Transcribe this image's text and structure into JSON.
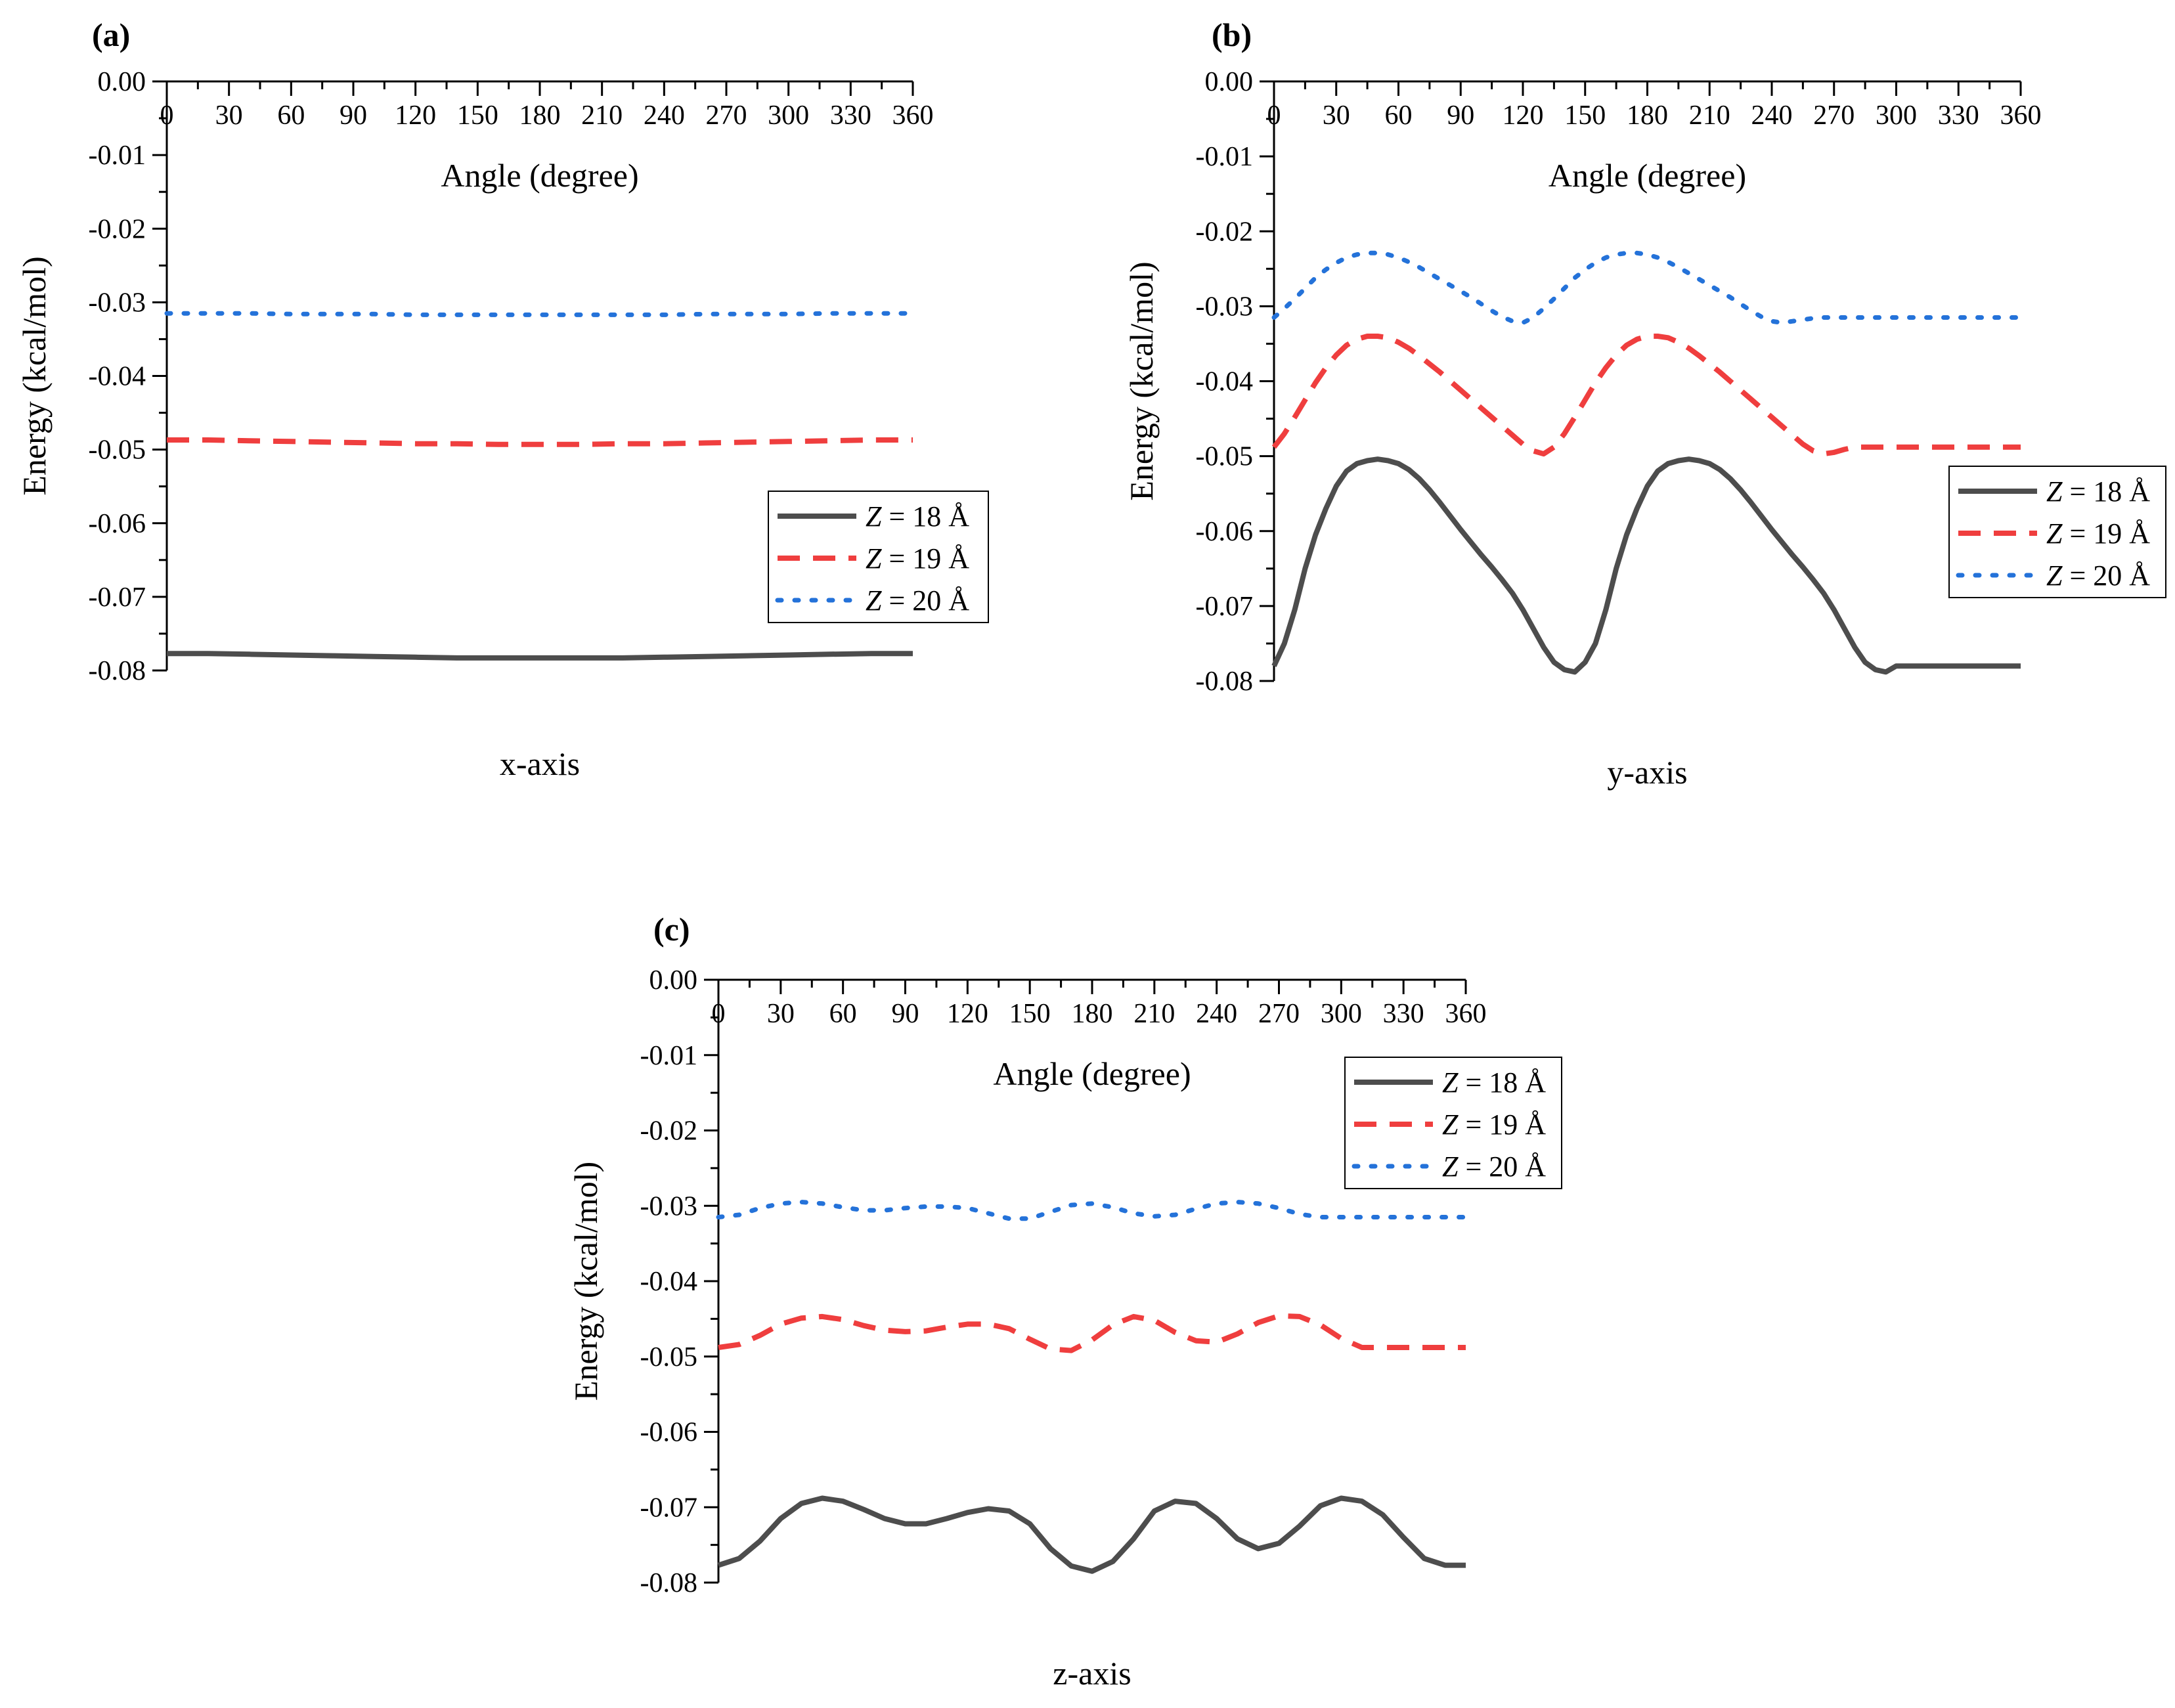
{
  "chart_data": [
    {
      "type": "line",
      "panel_label": "(a)",
      "caption": "x-axis",
      "xlabel": "Angle (degree)",
      "ylabel": "Energy (kcal/mol)",
      "xlim": [
        0,
        360
      ],
      "ylim": [
        -0.08,
        0.0
      ],
      "xticks": [
        0,
        30,
        60,
        90,
        120,
        150,
        180,
        210,
        240,
        270,
        300,
        330,
        360
      ],
      "yticks": [
        0.0,
        -0.01,
        -0.02,
        -0.03,
        -0.04,
        -0.05,
        -0.06,
        -0.07,
        -0.08
      ],
      "ytick_labels": [
        "0.00",
        "-0.01",
        "-0.02",
        "-0.03",
        "-0.04",
        "-0.05",
        "-0.06",
        "-0.07",
        "-0.08"
      ],
      "legend_position": "middle-right",
      "x": [
        0,
        20,
        40,
        60,
        80,
        100,
        120,
        140,
        160,
        180,
        200,
        220,
        240,
        260,
        280,
        300,
        320,
        340,
        360
      ],
      "series": [
        {
          "name": "Z = 18 Å",
          "label_var": "Z",
          "label_rest": " = 18 Å",
          "style": "solid",
          "color": "#4d4d4d",
          "values": [
            -0.0777,
            -0.0777,
            -0.0778,
            -0.0779,
            -0.078,
            -0.0781,
            -0.0782,
            -0.0783,
            -0.0783,
            -0.0783,
            -0.0783,
            -0.0783,
            -0.0782,
            -0.0781,
            -0.078,
            -0.0779,
            -0.0778,
            -0.0777,
            -0.0777
          ]
        },
        {
          "name": "Z = 19 Å",
          "label_var": "Z",
          "label_rest": " = 19 Å",
          "style": "dash",
          "color": "#ef3e3e",
          "values": [
            -0.0487,
            -0.0487,
            -0.0488,
            -0.0489,
            -0.049,
            -0.0491,
            -0.0492,
            -0.0492,
            -0.0493,
            -0.0493,
            -0.0493,
            -0.0492,
            -0.0492,
            -0.0491,
            -0.049,
            -0.0489,
            -0.0488,
            -0.0487,
            -0.0487
          ]
        },
        {
          "name": "Z = 20 Å",
          "label_var": "Z",
          "label_rest": " = 20 Å",
          "style": "dot",
          "color": "#2472d9",
          "values": [
            -0.0315,
            -0.0315,
            -0.0315,
            -0.0316,
            -0.0316,
            -0.0316,
            -0.0317,
            -0.0317,
            -0.0317,
            -0.0317,
            -0.0317,
            -0.0317,
            -0.0317,
            -0.0316,
            -0.0316,
            -0.0316,
            -0.0315,
            -0.0315,
            -0.0315
          ]
        }
      ]
    },
    {
      "type": "line",
      "panel_label": "(b)",
      "caption": "y-axis",
      "xlabel": "Angle (degree)",
      "ylabel": "Energy (kcal/mol)",
      "xlim": [
        0,
        360
      ],
      "ylim": [
        -0.08,
        0.0
      ],
      "xticks": [
        0,
        30,
        60,
        90,
        120,
        150,
        180,
        210,
        240,
        270,
        300,
        330,
        360
      ],
      "yticks": [
        0.0,
        -0.01,
        -0.02,
        -0.03,
        -0.04,
        -0.05,
        -0.06,
        -0.07,
        -0.08
      ],
      "ytick_labels": [
        "0.00",
        "-0.01",
        "-0.02",
        "-0.03",
        "-0.04",
        "-0.05",
        "-0.06",
        "-0.07",
        "-0.08"
      ],
      "legend_position": "middle-right",
      "x": [
        0,
        5,
        10,
        15,
        20,
        25,
        30,
        35,
        40,
        45,
        50,
        55,
        60,
        65,
        70,
        75,
        80,
        85,
        90,
        95,
        100,
        105,
        110,
        115,
        120,
        125,
        130,
        135,
        140,
        145,
        150,
        155,
        160,
        165,
        170,
        175,
        180,
        185,
        190,
        195,
        200,
        205,
        210,
        215,
        220,
        225,
        230,
        235,
        240,
        245,
        250,
        255,
        260,
        265,
        270,
        275,
        280,
        285,
        290,
        295,
        300,
        305,
        310,
        315,
        320,
        325,
        330,
        335,
        340,
        345,
        350,
        355,
        360
      ],
      "series": [
        {
          "name": "Z = 18 Å",
          "label_var": "Z",
          "label_rest": " = 18 Å",
          "style": "solid",
          "color": "#4d4d4d",
          "values": [
            -0.078,
            -0.075,
            -0.0705,
            -0.065,
            -0.0605,
            -0.057,
            -0.054,
            -0.052,
            -0.051,
            -0.0506,
            -0.0504,
            -0.0506,
            -0.051,
            -0.0518,
            -0.053,
            -0.0545,
            -0.0562,
            -0.058,
            -0.0598,
            -0.0615,
            -0.0632,
            -0.0648,
            -0.0665,
            -0.0683,
            -0.0705,
            -0.073,
            -0.0755,
            -0.0775,
            -0.0785,
            -0.0788,
            -0.0775,
            -0.075,
            -0.0705,
            -0.065,
            -0.0605,
            -0.057,
            -0.054,
            -0.052,
            -0.051,
            -0.0506,
            -0.0504,
            -0.0506,
            -0.051,
            -0.0518,
            -0.053,
            -0.0545,
            -0.0562,
            -0.058,
            -0.0598,
            -0.0615,
            -0.0632,
            -0.0648,
            -0.0665,
            -0.0683,
            -0.0705,
            -0.073,
            -0.0755,
            -0.0775,
            -0.0785,
            -0.0788,
            -0.078,
            -0.078,
            -0.078,
            -0.078,
            -0.078,
            -0.078,
            -0.078,
            -0.078,
            -0.078,
            -0.078,
            -0.078,
            -0.078,
            -0.078
          ]
        },
        {
          "name": "Z = 19 Å",
          "label_var": "Z",
          "label_rest": " = 19 Å",
          "style": "dash",
          "color": "#ef3e3e",
          "values": [
            -0.0488,
            -0.047,
            -0.0448,
            -0.0425,
            -0.0402,
            -0.0382,
            -0.0365,
            -0.0352,
            -0.0344,
            -0.034,
            -0.034,
            -0.0342,
            -0.0348,
            -0.0356,
            -0.0366,
            -0.0377,
            -0.0388,
            -0.04,
            -0.0412,
            -0.0424,
            -0.0436,
            -0.0448,
            -0.046,
            -0.0472,
            -0.0484,
            -0.0493,
            -0.0497,
            -0.0488,
            -0.047,
            -0.0448,
            -0.0425,
            -0.0402,
            -0.0382,
            -0.0365,
            -0.0352,
            -0.0344,
            -0.034,
            -0.034,
            -0.0342,
            -0.0348,
            -0.0356,
            -0.0366,
            -0.0377,
            -0.0388,
            -0.04,
            -0.0412,
            -0.0424,
            -0.0436,
            -0.0448,
            -0.046,
            -0.0472,
            -0.0484,
            -0.0493,
            -0.0497,
            -0.0495,
            -0.0491,
            -0.0488,
            -0.0488,
            -0.0488,
            -0.0488,
            -0.0488,
            -0.0488,
            -0.0488,
            -0.0488,
            -0.0488,
            -0.0488,
            -0.0488,
            -0.0488,
            -0.0488,
            -0.0488,
            -0.0488,
            -0.0488,
            -0.0488
          ]
        },
        {
          "name": "Z = 20 Å",
          "label_var": "Z",
          "label_rest": " = 20 Å",
          "style": "dot",
          "color": "#2472d9",
          "values": [
            -0.0315,
            -0.0303,
            -0.029,
            -0.0276,
            -0.0262,
            -0.0251,
            -0.0242,
            -0.0235,
            -0.0231,
            -0.0229,
            -0.0229,
            -0.0231,
            -0.0235,
            -0.0241,
            -0.0248,
            -0.0256,
            -0.0264,
            -0.0272,
            -0.028,
            -0.0288,
            -0.0297,
            -0.0306,
            -0.0314,
            -0.032,
            -0.0322,
            -0.0315,
            -0.0303,
            -0.029,
            -0.0276,
            -0.0262,
            -0.0251,
            -0.0242,
            -0.0235,
            -0.0231,
            -0.0229,
            -0.0229,
            -0.0231,
            -0.0235,
            -0.0241,
            -0.0248,
            -0.0256,
            -0.0264,
            -0.0272,
            -0.028,
            -0.0288,
            -0.0297,
            -0.0306,
            -0.0314,
            -0.032,
            -0.0322,
            -0.032,
            -0.0318,
            -0.0316,
            -0.0315,
            -0.0315,
            -0.0315,
            -0.0315,
            -0.0315,
            -0.0315,
            -0.0315,
            -0.0315,
            -0.0315,
            -0.0315,
            -0.0315,
            -0.0315,
            -0.0315,
            -0.0315,
            -0.0315,
            -0.0315,
            -0.0315,
            -0.0315,
            -0.0315,
            -0.0315
          ]
        }
      ]
    },
    {
      "type": "line",
      "panel_label": "(c)",
      "caption": "z-axis",
      "xlabel": "Angle (degree)",
      "ylabel": "Energy (kcal/mol)",
      "xlim": [
        0,
        360
      ],
      "ylim": [
        -0.08,
        0.0
      ],
      "xticks": [
        0,
        30,
        60,
        90,
        120,
        150,
        180,
        210,
        240,
        270,
        300,
        330,
        360
      ],
      "yticks": [
        0.0,
        -0.01,
        -0.02,
        -0.03,
        -0.04,
        -0.05,
        -0.06,
        -0.07,
        -0.08
      ],
      "ytick_labels": [
        "0.00",
        "-0.01",
        "-0.02",
        "-0.03",
        "-0.04",
        "-0.05",
        "-0.06",
        "-0.07",
        "-0.08"
      ],
      "legend_position": "top-right",
      "x": [
        0,
        10,
        20,
        30,
        40,
        50,
        60,
        70,
        80,
        90,
        100,
        110,
        120,
        130,
        140,
        150,
        160,
        170,
        180,
        190,
        200,
        210,
        220,
        230,
        240,
        250,
        260,
        270,
        280,
        290,
        300,
        310,
        320,
        330,
        340,
        350,
        360
      ],
      "series": [
        {
          "name": "Z = 18 Å",
          "label_var": "Z",
          "label_rest": " = 18 Å",
          "style": "solid",
          "color": "#4d4d4d",
          "values": [
            -0.0777,
            -0.0768,
            -0.0745,
            -0.0715,
            -0.0695,
            -0.0688,
            -0.0692,
            -0.0703,
            -0.0715,
            -0.0722,
            -0.0722,
            -0.0715,
            -0.0707,
            -0.0702,
            -0.0705,
            -0.0722,
            -0.0755,
            -0.0778,
            -0.0785,
            -0.0772,
            -0.0742,
            -0.0705,
            -0.0692,
            -0.0695,
            -0.0715,
            -0.0742,
            -0.0755,
            -0.0748,
            -0.0725,
            -0.0698,
            -0.0688,
            -0.0692,
            -0.071,
            -0.074,
            -0.0768,
            -0.0777,
            -0.0777
          ]
        },
        {
          "name": "Z = 19 Å",
          "label_var": "Z",
          "label_rest": " = 19 Å",
          "style": "dash",
          "color": "#ef3e3e",
          "values": [
            -0.0488,
            -0.0484,
            -0.0472,
            -0.0457,
            -0.0449,
            -0.0447,
            -0.0451,
            -0.0459,
            -0.0465,
            -0.0467,
            -0.0466,
            -0.0461,
            -0.0457,
            -0.0457,
            -0.0463,
            -0.0477,
            -0.049,
            -0.0492,
            -0.0478,
            -0.0458,
            -0.0447,
            -0.0452,
            -0.0468,
            -0.0479,
            -0.0481,
            -0.047,
            -0.0455,
            -0.0446,
            -0.0447,
            -0.0458,
            -0.0476,
            -0.0488,
            -0.0488,
            -0.0488,
            -0.0488,
            -0.0488,
            -0.0488
          ]
        },
        {
          "name": "Z = 20 Å",
          "label_var": "Z",
          "label_rest": " = 20 Å",
          "style": "dot",
          "color": "#2472d9",
          "values": [
            -0.0315,
            -0.0312,
            -0.0303,
            -0.0297,
            -0.0295,
            -0.0297,
            -0.0302,
            -0.0306,
            -0.0306,
            -0.0303,
            -0.0301,
            -0.0301,
            -0.0303,
            -0.031,
            -0.0317,
            -0.0317,
            -0.0308,
            -0.0299,
            -0.0297,
            -0.0302,
            -0.031,
            -0.0314,
            -0.0312,
            -0.0304,
            -0.0297,
            -0.0295,
            -0.0297,
            -0.0303,
            -0.0311,
            -0.0315,
            -0.0315,
            -0.0315,
            -0.0315,
            -0.0315,
            -0.0315,
            -0.0315,
            -0.0315
          ]
        }
      ]
    }
  ]
}
